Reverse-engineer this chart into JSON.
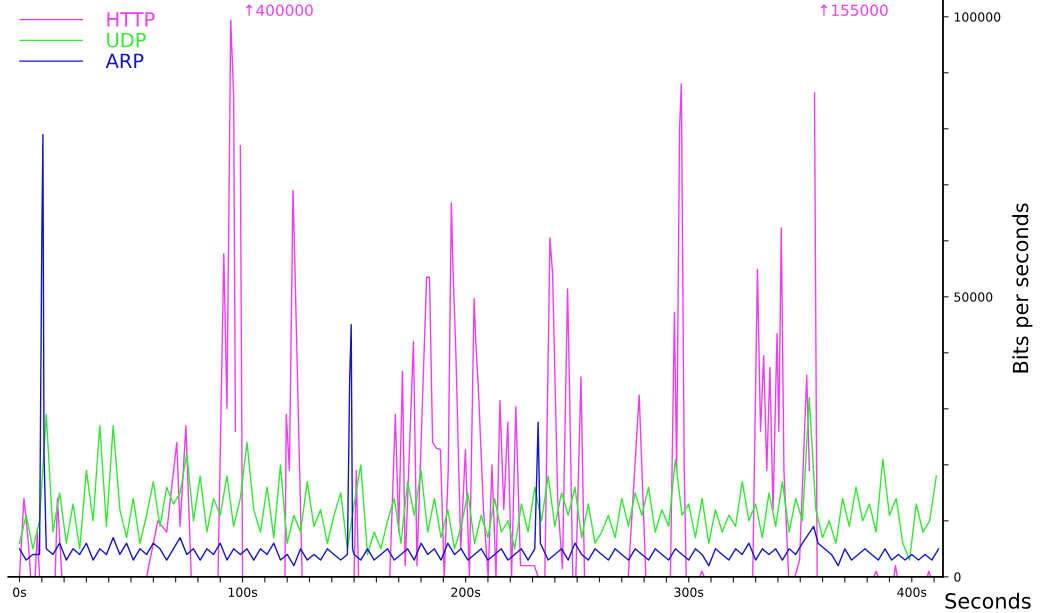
{
  "chart_data": {
    "type": "line",
    "xlabel": "Seconds",
    "ylabel": "Bits per seconds",
    "xlim": [
      -5,
      414
    ],
    "ylim": [
      0,
      103000
    ],
    "xticks": [
      {
        "value": 0,
        "label": "0s"
      },
      {
        "value": 10,
        "label": null
      },
      {
        "value": 20,
        "label": null
      },
      {
        "value": 30,
        "label": null
      },
      {
        "value": 40,
        "label": null
      },
      {
        "value": 50,
        "label": null
      },
      {
        "value": 60,
        "label": null
      },
      {
        "value": 70,
        "label": null
      },
      {
        "value": 80,
        "label": null
      },
      {
        "value": 90,
        "label": null
      },
      {
        "value": 100,
        "label": "100s"
      },
      {
        "value": 110,
        "label": null
      },
      {
        "value": 120,
        "label": null
      },
      {
        "value": 130,
        "label": null
      },
      {
        "value": 140,
        "label": null
      },
      {
        "value": 150,
        "label": null
      },
      {
        "value": 160,
        "label": null
      },
      {
        "value": 170,
        "label": null
      },
      {
        "value": 180,
        "label": null
      },
      {
        "value": 190,
        "label": null
      },
      {
        "value": 200,
        "label": "200s"
      },
      {
        "value": 210,
        "label": null
      },
      {
        "value": 220,
        "label": null
      },
      {
        "value": 230,
        "label": null
      },
      {
        "value": 240,
        "label": null
      },
      {
        "value": 250,
        "label": null
      },
      {
        "value": 260,
        "label": null
      },
      {
        "value": 270,
        "label": null
      },
      {
        "value": 280,
        "label": null
      },
      {
        "value": 290,
        "label": null
      },
      {
        "value": 300,
        "label": "300s"
      },
      {
        "value": 310,
        "label": null
      },
      {
        "value": 320,
        "label": null
      },
      {
        "value": 330,
        "label": null
      },
      {
        "value": 340,
        "label": null
      },
      {
        "value": 350,
        "label": null
      },
      {
        "value": 360,
        "label": null
      },
      {
        "value": 370,
        "label": null
      },
      {
        "value": 380,
        "label": null
      },
      {
        "value": 390,
        "label": null
      },
      {
        "value": 400,
        "label": "400s"
      },
      {
        "value": 410,
        "label": null
      }
    ],
    "yticks": [
      0,
      {
        "value": 10000,
        "label": null
      },
      {
        "value": 20000,
        "label": null
      },
      {
        "value": 30000,
        "label": null
      },
      {
        "value": 40000,
        "label": null
      },
      50000,
      {
        "value": 60000,
        "label": null
      },
      {
        "value": 70000,
        "label": null
      },
      {
        "value": 80000,
        "label": null
      },
      {
        "value": 90000,
        "label": null
      },
      100000
    ],
    "grid": false,
    "legend": "top left",
    "marker": "none",
    "line_style": "solid",
    "tick_labels": true,
    "annotations": [
      "↑400000",
      "↑155000"
    ],
    "series": [
      {
        "name": "HTTP",
        "color": "#f03cf0",
        "x": [
          0,
          2,
          4,
          5,
          7,
          8,
          9,
          16,
          17,
          19,
          57,
          62,
          66,
          70.5,
          72,
          74.6,
          77,
          89,
          91.6,
          93,
          94.7,
          96,
          96.8,
          98.2,
          99,
          100,
          119,
          119.6,
          121,
          122.6,
          123.2,
          126.7,
          150,
          151,
          152,
          166,
          168.5,
          170,
          171.7,
          172.9,
          176.6,
          178.2,
          182.5,
          183.8,
          185.2,
          186.9,
          188.7,
          190.4,
          192.2,
          193.6,
          194.3,
          195.7,
          197.8,
          199.9,
          201.7,
          203.8,
          204.5,
          205.9,
          208,
          210.1,
          211.8,
          213.6,
          215.4,
          217.1,
          218.9,
          220.6,
          222.5,
          224.6,
          230.8,
          232.5,
          235.5,
          237.8,
          239,
          241.3,
          243.4,
          245.7,
          246.6,
          248,
          249.4,
          251.7,
          253.3,
          255.4,
          272.9,
          277.8,
          280.8,
          291.8,
          293.6,
          294.6,
          295.9,
          296.7,
          298,
          298.9,
          305,
          305.9,
          307,
          328.7,
          330.8,
          332.2,
          333.6,
          335,
          336.4,
          337.8,
          339.6,
          340.4,
          341.5,
          342.7,
          344.8,
          347.6,
          349.7,
          352.9,
          354.1,
          355.9,
          356.4,
          357.6,
          383,
          384,
          385,
          392,
          392.7,
          393.5,
          407,
          407.6,
          408.5,
          412
        ],
        "values": [
          0,
          14000,
          6000,
          0,
          0,
          8000,
          0,
          0,
          14000,
          0,
          0,
          10000,
          8000,
          24000,
          9000,
          27000,
          0,
          0,
          57700,
          30000,
          99400,
          86000,
          26000,
          null,
          77000,
          0,
          0,
          29000,
          19000,
          69000,
          60000,
          0,
          0,
          19000,
          0,
          0,
          29000,
          8000,
          36700,
          2000,
          42000,
          2000,
          53500,
          53500,
          24000,
          23000,
          22700,
          0,
          19000,
          66800,
          55500,
          39000,
          5000,
          22700,
          0,
          49700,
          42500,
          32000,
          12000,
          0,
          20000,
          0,
          31500,
          12000,
          27600,
          0,
          30400,
          2000,
          2000,
          0,
          0,
          60500,
          54000,
          13500,
          1500,
          51400,
          33000,
          0,
          0,
          35700,
          0,
          0,
          0,
          32500,
          0,
          0,
          47200,
          19000,
          80000,
          88000,
          19000,
          0,
          0,
          1000,
          0,
          0,
          54900,
          26000,
          39500,
          19000,
          37400,
          12000,
          43400,
          26000,
          62300,
          19000,
          0,
          0,
          3000,
          36000,
          19000,
          null,
          86400,
          0,
          0,
          1000,
          0,
          0,
          2000,
          0,
          0,
          1000,
          0,
          0
        ]
      },
      {
        "name": "UDP",
        "color": "#33e833",
        "x": [
          0,
          3,
          6,
          9,
          12,
          15,
          18,
          21,
          24,
          27,
          30,
          33,
          36,
          39,
          42,
          45,
          48,
          51,
          54,
          57,
          60,
          63,
          66,
          69,
          72,
          75,
          78,
          81,
          84,
          87,
          90,
          93,
          96,
          99,
          102,
          105,
          108,
          111,
          114,
          117,
          120,
          123,
          126,
          129,
          132,
          135,
          138,
          141,
          144,
          147,
          150,
          153,
          156,
          159,
          162,
          165,
          168,
          171,
          174,
          177,
          180,
          183,
          186,
          189,
          192,
          195,
          198,
          201,
          204,
          207,
          210,
          213,
          216,
          219,
          222,
          225,
          228,
          231,
          234,
          237,
          240,
          243,
          246,
          249,
          252,
          255,
          258,
          261,
          264,
          267,
          270,
          273,
          276,
          279,
          282,
          285,
          288,
          291,
          294,
          297,
          300,
          303,
          306,
          309,
          312,
          315,
          318,
          321,
          324,
          327,
          330,
          333,
          336,
          339,
          342,
          345,
          348,
          351,
          354,
          357,
          360,
          363,
          366,
          369,
          372,
          375,
          378,
          381,
          384,
          387,
          390,
          393,
          396,
          399,
          402,
          405,
          408,
          411
        ],
        "values": [
          6000,
          11000,
          5000,
          10000,
          29000,
          8000,
          15000,
          6000,
          13000,
          5000,
          19000,
          10000,
          27000,
          9000,
          27000,
          12000,
          7000,
          14000,
          6000,
          11000,
          17000,
          9000,
          16000,
          13000,
          15000,
          22000,
          10000,
          18000,
          8000,
          14000,
          11000,
          18000,
          9000,
          14000,
          24000,
          12000,
          8000,
          16000,
          7000,
          20000,
          6000,
          11000,
          8000,
          17000,
          9000,
          12000,
          6000,
          11000,
          15000,
          5000,
          13000,
          20000,
          4000,
          8000,
          5000,
          10000,
          14000,
          6000,
          17000,
          11000,
          19000,
          8000,
          14000,
          7000,
          12000,
          5000,
          9000,
          15000,
          6000,
          11000,
          7000,
          14000,
          8000,
          10000,
          5000,
          13000,
          8000,
          16000,
          10000,
          18000,
          9000,
          15000,
          11000,
          16000,
          7000,
          13000,
          6000,
          8000,
          11000,
          7000,
          14000,
          9000,
          15000,
          11000,
          16000,
          8000,
          12000,
          9000,
          21000,
          11000,
          13000,
          7000,
          14000,
          6000,
          12000,
          8000,
          11000,
          9000,
          17000,
          10000,
          13000,
          7000,
          15000,
          9000,
          17000,
          8000,
          14000,
          10000,
          32000,
          12000,
          7000,
          10000,
          6000,
          14000,
          9000,
          16000,
          10000,
          13000,
          8000,
          21000,
          11000,
          14000,
          6000,
          3000,
          13000,
          8000,
          10000,
          18000
        ]
      },
      {
        "name": "ARP",
        "color": "#1414cc",
        "x": [
          0,
          3,
          6,
          9,
          10,
          10.5,
          11,
          12,
          15,
          18,
          21,
          24,
          27,
          30,
          33,
          36,
          39,
          42,
          45,
          48,
          51,
          54,
          57,
          60,
          63,
          66,
          69,
          72,
          75,
          78,
          81,
          84,
          87,
          90,
          93,
          96,
          99,
          102,
          105,
          108,
          111,
          114,
          117,
          120,
          123,
          126,
          129,
          132,
          135,
          138,
          141,
          144,
          147,
          148,
          148.7,
          149.3,
          150,
          153,
          156,
          159,
          162,
          165,
          168,
          171,
          174,
          177,
          180,
          183,
          186,
          189,
          192,
          195,
          198,
          201,
          204,
          207,
          210,
          213,
          216,
          219,
          222,
          225,
          228,
          231,
          232.5,
          233.5,
          237,
          240,
          243,
          246,
          249,
          252,
          255,
          258,
          261,
          264,
          267,
          270,
          273,
          276,
          279,
          282,
          285,
          288,
          291,
          294,
          297,
          300,
          303,
          306,
          309,
          312,
          315,
          318,
          321,
          324,
          327,
          330,
          333,
          336,
          339,
          342,
          345,
          348,
          351,
          356,
          358,
          364,
          367,
          370,
          373,
          376,
          379,
          382,
          385,
          388,
          391,
          394,
          397,
          400,
          403,
          406,
          409,
          412
        ],
        "values": [
          5000,
          3000,
          4000,
          4000,
          60000,
          79000,
          22000,
          5000,
          4000,
          6000,
          3000,
          5000,
          4000,
          6000,
          3000,
          5000,
          4000,
          7000,
          4000,
          6000,
          3000,
          5000,
          4000,
          6000,
          5000,
          3000,
          5000,
          7000,
          4000,
          5000,
          3000,
          5000,
          4000,
          6000,
          3000,
          5000,
          4000,
          5000,
          3000,
          5000,
          4000,
          6000,
          3000,
          4000,
          2000,
          5000,
          3000,
          4000,
          3000,
          5000,
          4000,
          3000,
          4000,
          35000,
          45000,
          5000,
          4000,
          3000,
          5000,
          3000,
          4000,
          5000,
          3000,
          4000,
          5000,
          3000,
          6000,
          4000,
          5000,
          3000,
          6000,
          4000,
          5000,
          3000,
          4000,
          5000,
          3000,
          4000,
          5000,
          3000,
          4000,
          5000,
          3000,
          5000,
          27600,
          6000,
          3000,
          4000,
          5000,
          3000,
          6000,
          4000,
          3000,
          5000,
          4000,
          3000,
          5000,
          4000,
          3000,
          5000,
          4000,
          3000,
          5000,
          4000,
          3000,
          5000,
          4000,
          3000,
          5000,
          4000,
          2000,
          5000,
          4000,
          3000,
          5000,
          4000,
          6000,
          3000,
          5000,
          4000,
          5000,
          3000,
          5000,
          4000,
          6000,
          9000,
          6000,
          4000,
          2000,
          5000,
          3000,
          4000,
          5000,
          4000,
          3000,
          5000,
          3000,
          4000,
          3000,
          4000,
          3000,
          4000,
          3000,
          5000
        ]
      }
    ]
  }
}
